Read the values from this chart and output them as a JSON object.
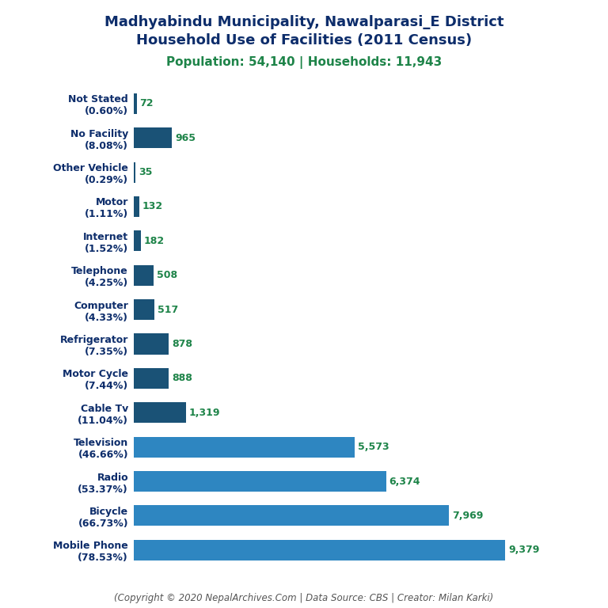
{
  "title_line1": "Madhyabindu Municipality, Nawalparasi_E District",
  "title_line2": "Household Use of Facilities (2011 Census)",
  "subtitle": "Population: 54,140 | Households: 11,943",
  "footer": "(Copyright © 2020 NepalArchives.Com | Data Source: CBS | Creator: Milan Karki)",
  "categories": [
    "Mobile Phone\n(78.53%)",
    "Bicycle\n(66.73%)",
    "Radio\n(53.37%)",
    "Television\n(46.66%)",
    "Cable Tv\n(11.04%)",
    "Motor Cycle\n(7.44%)",
    "Refrigerator\n(7.35%)",
    "Computer\n(4.33%)",
    "Telephone\n(4.25%)",
    "Internet\n(1.52%)",
    "Motor\n(1.11%)",
    "Other Vehicle\n(0.29%)",
    "No Facility\n(8.08%)",
    "Not Stated\n(0.60%)"
  ],
  "values": [
    9379,
    7969,
    6374,
    5573,
    1319,
    888,
    878,
    517,
    508,
    182,
    132,
    35,
    965,
    72
  ],
  "value_labels": [
    "9,379",
    "7,969",
    "6,374",
    "5,573",
    "1,319",
    "888",
    "878",
    "517",
    "508",
    "182",
    "132",
    "35",
    "965",
    "72"
  ],
  "bar_color_dark": "#1a5276",
  "bar_color_light": "#2e86c1",
  "threshold": 1400,
  "title_color": "#0d2d6b",
  "subtitle_color": "#1e8449",
  "value_color": "#1e8449",
  "footer_color": "#555555",
  "bg_color": "#ffffff",
  "title_fontsize": 13,
  "subtitle_fontsize": 11,
  "label_fontsize": 9,
  "value_fontsize": 9,
  "footer_fontsize": 8.5
}
